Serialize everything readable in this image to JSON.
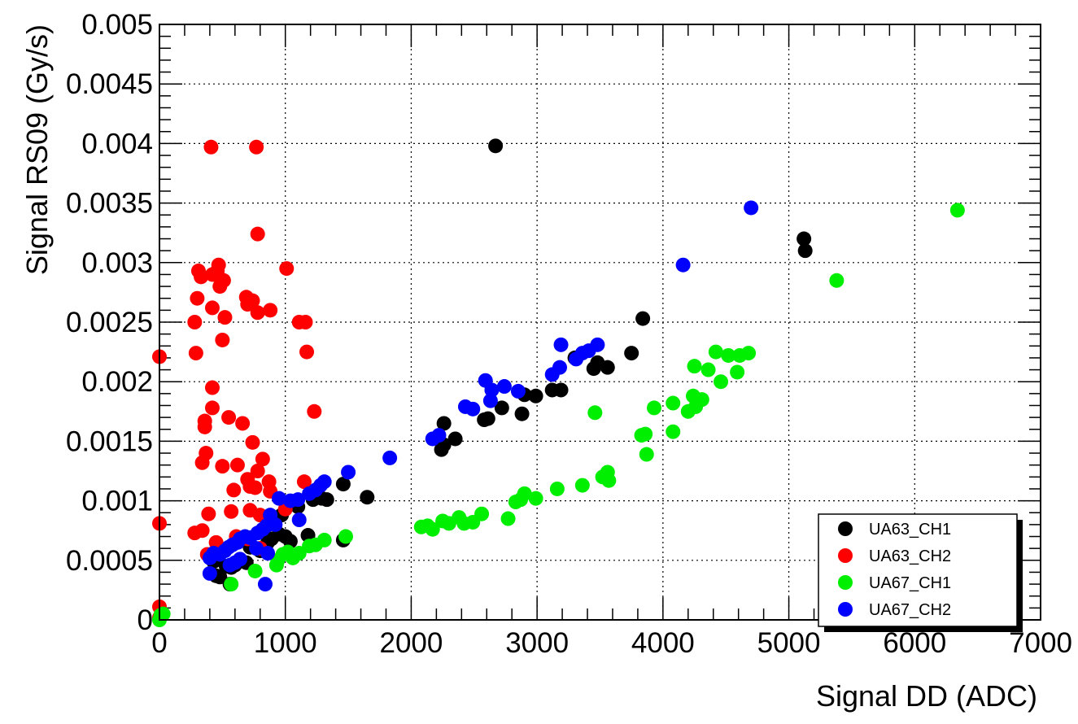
{
  "chart_data": {
    "type": "scatter",
    "title": "",
    "xlabel": "Signal DD (ADC)",
    "ylabel": "Signal RS09 (Gy/s)",
    "xlim": [
      0,
      7000
    ],
    "ylim": [
      0,
      0.005
    ],
    "x_ticks": [
      0,
      1000,
      2000,
      3000,
      4000,
      5000,
      6000,
      7000
    ],
    "x_tick_labels": [
      "0",
      "1000",
      "2000",
      "3000",
      "4000",
      "5000",
      "6000",
      "7000"
    ],
    "y_ticks": [
      0,
      0.0005,
      0.001,
      0.0015,
      0.002,
      0.0025,
      0.003,
      0.0035,
      0.004,
      0.0045,
      0.005
    ],
    "y_tick_labels": [
      "0",
      "0.0005",
      "0.001",
      "0.0015",
      "0.002",
      "0.0025",
      "0.003",
      "0.0035",
      "0.004",
      "0.0045",
      "0.005"
    ],
    "grid": true,
    "grid_style": "dotted",
    "legend_position": "bottom-right",
    "series": [
      {
        "name": "UA63_CH1",
        "color": "#000000",
        "points": [
          [
            2670,
            0.00398
          ],
          [
            5120,
            0.0032
          ],
          [
            5130,
            0.0031
          ],
          [
            3840,
            0.00253
          ],
          [
            3750,
            0.00224
          ],
          [
            3480,
            0.00216
          ],
          [
            3450,
            0.00211
          ],
          [
            3560,
            0.00212
          ],
          [
            3300,
            0.0022
          ],
          [
            3190,
            0.00193
          ],
          [
            3120,
            0.00193
          ],
          [
            2990,
            0.00188
          ],
          [
            2900,
            0.00189
          ],
          [
            2880,
            0.00173
          ],
          [
            2720,
            0.00178
          ],
          [
            2610,
            0.00169
          ],
          [
            2580,
            0.00168
          ],
          [
            2260,
            0.00165
          ],
          [
            2350,
            0.00152
          ],
          [
            2240,
            0.00143
          ],
          [
            2260,
            0.00147
          ],
          [
            1650,
            0.00103
          ],
          [
            1460,
            0.00114
          ],
          [
            1330,
            0.00101
          ],
          [
            1290,
            0.00102
          ],
          [
            1220,
            0.00101
          ],
          [
            1180,
            0.00071
          ],
          [
            1100,
            0.00095
          ],
          [
            1040,
            0.00066
          ],
          [
            1000,
            0.0007
          ],
          [
            970,
            0.00088
          ],
          [
            950,
            0.00072
          ],
          [
            890,
            0.00068
          ],
          [
            860,
            0.00065
          ],
          [
            800,
            0.00058
          ],
          [
            720,
            0.00061
          ],
          [
            690,
            0.00048
          ],
          [
            640,
            0.0005
          ],
          [
            600,
            0.00046
          ],
          [
            570,
            0.00044
          ],
          [
            530,
            0.00045
          ],
          [
            480,
            0.00036
          ],
          [
            450,
            0.00037
          ],
          [
            430,
            0.00049
          ],
          [
            560,
            0.0003
          ],
          [
            1460,
            0.00067
          ]
        ]
      },
      {
        "name": "UA63_CH2",
        "color": "#ff0000",
        "points": [
          [
            410,
            0.00397
          ],
          [
            770,
            0.00397
          ],
          [
            780,
            0.00324
          ],
          [
            1010,
            0.00295
          ],
          [
            470,
            0.00298
          ],
          [
            310,
            0.00293
          ],
          [
            420,
            0.0029
          ],
          [
            460,
            0.00293
          ],
          [
            330,
            0.00288
          ],
          [
            490,
            0.00284
          ],
          [
            510,
            0.00285
          ],
          [
            480,
            0.0028
          ],
          [
            300,
            0.0027
          ],
          [
            690,
            0.00271
          ],
          [
            740,
            0.00268
          ],
          [
            700,
            0.00265
          ],
          [
            420,
            0.00262
          ],
          [
            780,
            0.00258
          ],
          [
            880,
            0.0026
          ],
          [
            520,
            0.00254
          ],
          [
            280,
            0.0025
          ],
          [
            1110,
            0.0025
          ],
          [
            1160,
            0.0025
          ],
          [
            500,
            0.00235
          ],
          [
            290,
            0.00224
          ],
          [
            1170,
            0.00225
          ],
          [
            0,
            0.00221
          ],
          [
            420,
            0.00195
          ],
          [
            420,
            0.00178
          ],
          [
            550,
            0.0017
          ],
          [
            1230,
            0.00175
          ],
          [
            360,
            0.00167
          ],
          [
            660,
            0.00165
          ],
          [
            360,
            0.00162
          ],
          [
            740,
            0.00149
          ],
          [
            370,
            0.0014
          ],
          [
            340,
            0.00132
          ],
          [
            620,
            0.0013
          ],
          [
            500,
            0.00129
          ],
          [
            820,
            0.00135
          ],
          [
            780,
            0.00125
          ],
          [
            700,
            0.00118
          ],
          [
            720,
            0.00112
          ],
          [
            760,
            0.00111
          ],
          [
            870,
            0.00116
          ],
          [
            1150,
            0.00116
          ],
          [
            590,
            0.00109
          ],
          [
            880,
            0.00108
          ],
          [
            1000,
            0.00093
          ],
          [
            720,
            0.00092
          ],
          [
            390,
            0.00089
          ],
          [
            570,
            0.00091
          ],
          [
            800,
            0.00088
          ],
          [
            280,
            0.00073
          ],
          [
            340,
            0.00075
          ],
          [
            0,
            0.00081
          ],
          [
            450,
            0.00065
          ],
          [
            610,
            0.0007
          ],
          [
            800,
            0.0006
          ],
          [
            380,
            0.00055
          ],
          [
            700,
            0.00068
          ],
          [
            0,
            0.00011
          ],
          [
            0,
            2e-05
          ]
        ]
      },
      {
        "name": "UA67_CH1",
        "color": "#00ee00",
        "points": [
          [
            6340,
            0.00344
          ],
          [
            5380,
            0.00285
          ],
          [
            4680,
            0.00224
          ],
          [
            4610,
            0.00222
          ],
          [
            4590,
            0.00208
          ],
          [
            4520,
            0.00222
          ],
          [
            4420,
            0.00225
          ],
          [
            4460,
            0.002
          ],
          [
            4360,
            0.0021
          ],
          [
            4250,
            0.00213
          ],
          [
            4240,
            0.00188
          ],
          [
            4310,
            0.00185
          ],
          [
            4260,
            0.00179
          ],
          [
            4200,
            0.00175
          ],
          [
            4080,
            0.00182
          ],
          [
            4080,
            0.00158
          ],
          [
            3930,
            0.00178
          ],
          [
            3860,
            0.00156
          ],
          [
            3830,
            0.00155
          ],
          [
            3870,
            0.00139
          ],
          [
            3460,
            0.00174
          ],
          [
            3560,
            0.00124
          ],
          [
            3570,
            0.00117
          ],
          [
            3520,
            0.0012
          ],
          [
            3360,
            0.00113
          ],
          [
            3160,
            0.0011
          ],
          [
            2990,
            0.00102
          ],
          [
            2900,
            0.00106
          ],
          [
            2870,
            0.00101
          ],
          [
            2830,
            0.00099
          ],
          [
            2770,
            0.00085
          ],
          [
            2560,
            0.00089
          ],
          [
            2490,
            0.00082
          ],
          [
            2420,
            0.00081
          ],
          [
            2380,
            0.00086
          ],
          [
            2300,
            0.00081
          ],
          [
            2250,
            0.00083
          ],
          [
            2170,
            0.00076
          ],
          [
            2130,
            0.00079
          ],
          [
            2080,
            0.00078
          ],
          [
            1480,
            0.0007
          ],
          [
            1310,
            0.00067
          ],
          [
            1240,
            0.00063
          ],
          [
            1190,
            0.00062
          ],
          [
            1110,
            0.00056
          ],
          [
            1060,
            0.00052
          ],
          [
            1020,
            0.00057
          ],
          [
            980,
            0.00055
          ],
          [
            940,
            0.0005
          ],
          [
            930,
            0.00046
          ],
          [
            760,
            0.00041
          ],
          [
            570,
            0.0003
          ],
          [
            30,
            5e-05
          ],
          [
            10,
            4e-05
          ],
          [
            0,
            0.0
          ]
        ]
      },
      {
        "name": "UA67_CH2",
        "color": "#0000ff",
        "points": [
          [
            4700,
            0.00346
          ],
          [
            4160,
            0.00298
          ],
          [
            3190,
            0.00231
          ],
          [
            3480,
            0.00231
          ],
          [
            3410,
            0.00226
          ],
          [
            3360,
            0.00224
          ],
          [
            3310,
            0.00219
          ],
          [
            3180,
            0.00212
          ],
          [
            3120,
            0.00206
          ],
          [
            2740,
            0.00196
          ],
          [
            2590,
            0.00201
          ],
          [
            2640,
            0.00193
          ],
          [
            2850,
            0.00192
          ],
          [
            2630,
            0.00184
          ],
          [
            2430,
            0.00179
          ],
          [
            2490,
            0.00177
          ],
          [
            2220,
            0.00155
          ],
          [
            2170,
            0.00152
          ],
          [
            1830,
            0.00136
          ],
          [
            1500,
            0.00124
          ],
          [
            1310,
            0.00116
          ],
          [
            1280,
            0.00113
          ],
          [
            1240,
            0.00109
          ],
          [
            1190,
            0.00106
          ],
          [
            1100,
            0.00101
          ],
          [
            1040,
            0.001
          ],
          [
            950,
            0.00102
          ],
          [
            880,
            0.00088
          ],
          [
            1110,
            0.00084
          ],
          [
            920,
            0.0008
          ],
          [
            850,
            0.00079
          ],
          [
            820,
            0.00076
          ],
          [
            780,
            0.00073
          ],
          [
            720,
            0.00069
          ],
          [
            680,
            0.0007
          ],
          [
            640,
            0.00068
          ],
          [
            620,
            0.00065
          ],
          [
            580,
            0.00063
          ],
          [
            550,
            0.00061
          ],
          [
            520,
            0.00058
          ],
          [
            480,
            0.00055
          ],
          [
            430,
            0.00056
          ],
          [
            400,
            0.00052
          ],
          [
            640,
            0.00051
          ],
          [
            600,
            0.00048
          ],
          [
            560,
            0.00046
          ],
          [
            400,
            0.00039
          ],
          [
            860,
            0.00056
          ],
          [
            840,
            0.0003
          ],
          [
            770,
            0.0006
          ]
        ]
      }
    ]
  }
}
